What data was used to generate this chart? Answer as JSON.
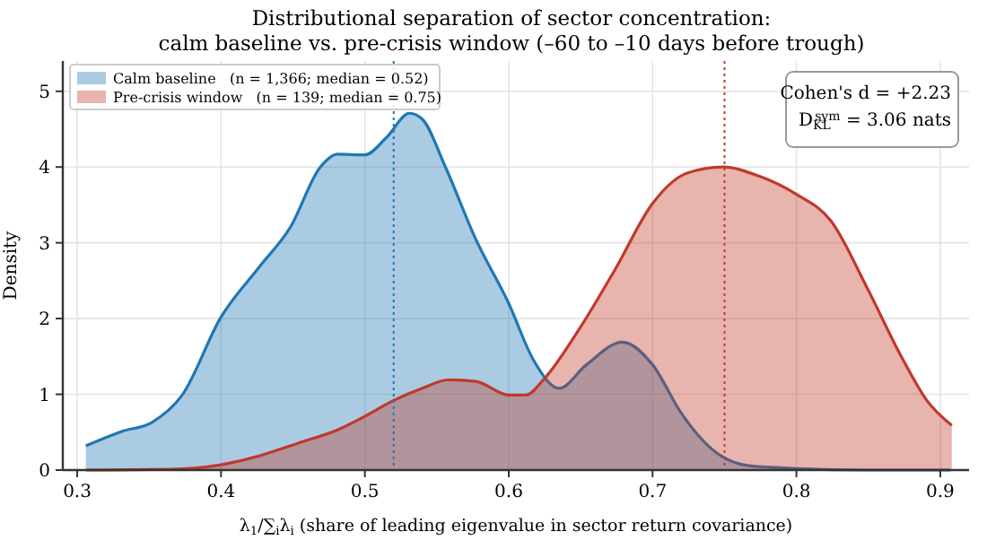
{
  "chart_data": {
    "type": "area",
    "title": "Distributional separation of sector concentration:",
    "subtitle": "calm baseline vs. pre-crisis window (–60 to –10 days before trough)",
    "xlabel": "λ$_{1}$/∑$_{i}$λ$_{i}$  (share of leading eigenvalue in sector return covariance)",
    "ylabel": "Density",
    "xlim": [
      0.29,
      0.92
    ],
    "ylim": [
      0,
      5.4
    ],
    "xticks": [
      0.3,
      0.4,
      0.5,
      0.6,
      0.7,
      0.8,
      0.9
    ],
    "yticks": [
      0,
      1,
      2,
      3,
      4,
      5
    ],
    "grid": true,
    "legend": "top left",
    "series": [
      {
        "name": "Calm baseline   (n = 1,366; median = 0.52)",
        "color": "#1f77b4",
        "x": [
          0.306,
          0.331,
          0.352,
          0.373,
          0.4,
          0.427,
          0.448,
          0.469,
          0.481,
          0.5,
          0.515,
          0.531,
          0.54,
          0.556,
          0.577,
          0.6,
          0.617,
          0.635,
          0.654,
          0.679,
          0.7,
          0.72,
          0.741,
          0.766,
          0.8,
          0.85,
          0.907
        ],
        "values": [
          0.32,
          0.51,
          0.63,
          0.99,
          2.02,
          2.69,
          3.2,
          4.0,
          4.17,
          4.16,
          4.39,
          4.71,
          4.63,
          4.0,
          3.05,
          2.2,
          1.46,
          1.08,
          1.39,
          1.69,
          1.39,
          0.75,
          0.28,
          0.06,
          0.02,
          0,
          0
        ]
      },
      {
        "name": "Pre-crisis window   (n = 139; median = 0.75)",
        "color": "#c0392b",
        "x": [
          0.306,
          0.365,
          0.4,
          0.427,
          0.456,
          0.481,
          0.5,
          0.519,
          0.54,
          0.558,
          0.577,
          0.6,
          0.612,
          0.624,
          0.649,
          0.674,
          0.7,
          0.724,
          0.749,
          0.774,
          0.8,
          0.824,
          0.849,
          0.874,
          0.891,
          0.908
        ],
        "values": [
          0,
          0.01,
          0.07,
          0.19,
          0.37,
          0.53,
          0.71,
          0.91,
          1.08,
          1.19,
          1.17,
          0.99,
          0.99,
          1.19,
          1.86,
          2.65,
          3.52,
          3.92,
          4.0,
          3.88,
          3.64,
          3.29,
          2.41,
          1.46,
          0.91,
          0.59
        ]
      }
    ],
    "ref_lines": [
      {
        "axis": "x",
        "value": 0.52,
        "color": "#1f77b4",
        "line_style": "dotted"
      },
      {
        "axis": "x",
        "value": 0.75,
        "color": "#c0392b",
        "line_style": "dotted"
      }
    ],
    "annotations": [
      "Cohen's d = +2.23",
      "D$_{KL}$$^{sym}$ = 3.06 nats"
    ]
  }
}
